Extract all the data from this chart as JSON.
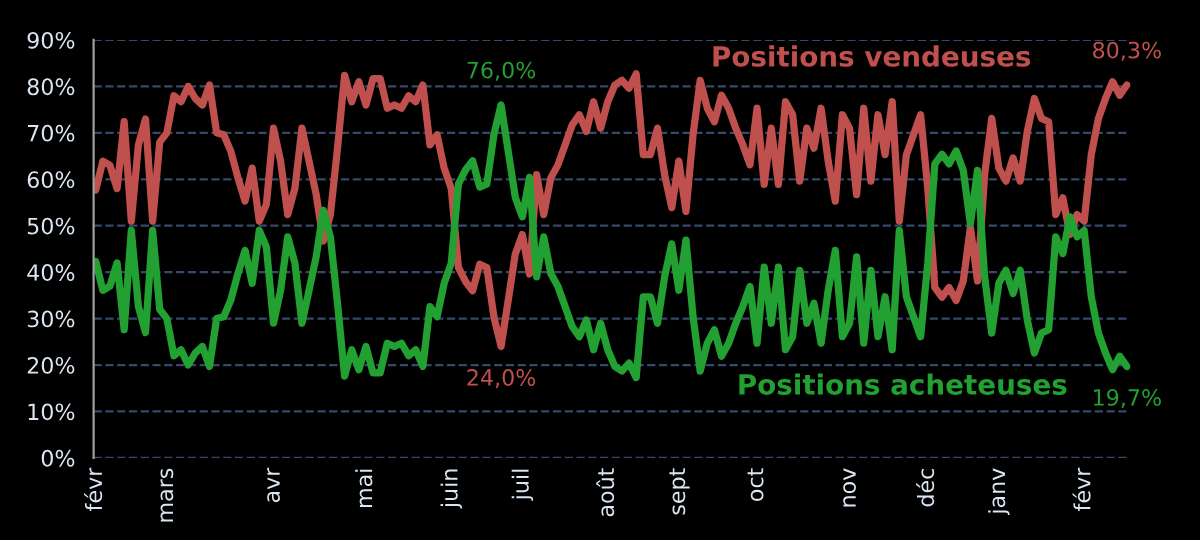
{
  "chart_data": {
    "type": "line",
    "categories": [
      "févr",
      null,
      null,
      null,
      null,
      null,
      null,
      null,
      null,
      null,
      "mars",
      null,
      null,
      null,
      null,
      null,
      null,
      null,
      null,
      null,
      null,
      null,
      null,
      null,
      null,
      "avr",
      null,
      null,
      null,
      null,
      null,
      null,
      null,
      null,
      null,
      null,
      null,
      null,
      "mai",
      null,
      null,
      null,
      null,
      null,
      null,
      null,
      null,
      null,
      null,
      null,
      "juin",
      null,
      null,
      null,
      null,
      null,
      null,
      null,
      null,
      null,
      "juil",
      null,
      null,
      null,
      null,
      null,
      null,
      null,
      null,
      null,
      null,
      null,
      "août",
      null,
      null,
      null,
      null,
      null,
      null,
      null,
      null,
      null,
      "sept",
      null,
      null,
      null,
      null,
      null,
      null,
      null,
      null,
      null,
      null,
      "oct",
      null,
      null,
      null,
      null,
      null,
      null,
      null,
      null,
      null,
      null,
      null,
      null,
      "nov",
      null,
      null,
      null,
      null,
      null,
      null,
      null,
      null,
      null,
      null,
      "déc",
      null,
      null,
      null,
      null,
      null,
      null,
      null,
      null,
      null,
      "janv",
      null,
      null,
      null,
      null,
      null,
      null,
      null,
      null,
      null,
      null,
      null,
      "févr",
      null,
      null,
      null,
      null,
      null,
      null
    ],
    "series": [
      {
        "name": "Positions vendeuses",
        "color": "#c0504d",
        "values": [
          57.7,
          63.9,
          63,
          58,
          72.4,
          51,
          67.4,
          73,
          51,
          68,
          70,
          78,
          76.7,
          80,
          77.4,
          76,
          80.3,
          70,
          69.6,
          66,
          60.3,
          55.3,
          62.4,
          51,
          54.6,
          71,
          63.9,
          52.4,
          58,
          71,
          63.9,
          56.7,
          46.7,
          52.4,
          66.7,
          82.4,
          76.7,
          81,
          76,
          81.7,
          81.7,
          75.3,
          76,
          75.3,
          78,
          76.7,
          80.3,
          67.4,
          69.6,
          62.4,
          58,
          41,
          38,
          36,
          41.7,
          41,
          30.3,
          24.0,
          33.9,
          43.9,
          48.1,
          39.6,
          61,
          52.4,
          60.3,
          63.1,
          67.4,
          71.7,
          73.9,
          70.3,
          76.7,
          71,
          76.7,
          80.3,
          81.3,
          79.6,
          82.7,
          65.3,
          65.3,
          71,
          61,
          53.9,
          63.9,
          53.1,
          69.6,
          81.3,
          75.3,
          72.4,
          78.1,
          75.3,
          71,
          67.4,
          63.1,
          75.3,
          58.9,
          71,
          58.9,
          76.7,
          73.9,
          59.6,
          71,
          66.7,
          75.3,
          63.9,
          55.3,
          73.9,
          71,
          56.7,
          75.3,
          59.6,
          73.9,
          65.3,
          76.7,
          51,
          65.3,
          69.6,
          73.9,
          58.1,
          36.7,
          34.6,
          36.7,
          33.9,
          38.1,
          49.6,
          38.1,
          61,
          73.1,
          62.4,
          59.6,
          64.6,
          59.6,
          70.3,
          77.4,
          73.1,
          72.4,
          52.4,
          56,
          48.1,
          52.4,
          51,
          65.3,
          73.1,
          77.4,
          81,
          78.1,
          80.3
        ]
      },
      {
        "name": "Positions acheteuses",
        "color": "#22a032",
        "values": [
          42.3,
          36.1,
          37,
          42,
          27.6,
          49,
          32.6,
          27,
          49,
          32,
          30,
          22,
          23.3,
          20,
          22.6,
          24,
          19.7,
          30,
          30.4,
          34,
          39.7,
          44.7,
          37.6,
          49,
          45.4,
          29,
          36.1,
          47.6,
          42,
          29,
          36.1,
          43.3,
          53.3,
          47.6,
          33.3,
          17.6,
          23.3,
          19,
          24,
          18.3,
          18.3,
          24.7,
          24,
          24.7,
          22,
          23.3,
          19.7,
          32.6,
          30.4,
          37.6,
          42,
          59,
          62,
          64,
          58.3,
          59,
          69.7,
          76.0,
          66.1,
          56.1,
          51.9,
          60.4,
          39,
          47.6,
          39.7,
          36.9,
          32.6,
          28.3,
          26.1,
          29.7,
          23.3,
          29,
          23.3,
          19.7,
          18.7,
          20.4,
          17.3,
          34.7,
          34.7,
          29,
          39,
          46.1,
          36.1,
          46.9,
          30.4,
          18.7,
          24.7,
          27.6,
          21.9,
          24.7,
          29,
          32.6,
          36.9,
          24.7,
          41.1,
          29,
          41.1,
          23.3,
          26.1,
          40.4,
          29,
          33.3,
          24.7,
          36.1,
          44.7,
          26.1,
          29,
          43.3,
          24.7,
          40.4,
          26.1,
          34.7,
          23.3,
          49,
          34.7,
          30.4,
          26.1,
          41.9,
          63.3,
          65.4,
          63.3,
          66.1,
          61.9,
          50.4,
          61.9,
          39,
          26.9,
          37.6,
          40.4,
          35.4,
          40.4,
          29.7,
          22.6,
          26.9,
          27.6,
          47.6,
          44,
          51.9,
          47.6,
          49,
          34.7,
          26.9,
          22.6,
          19,
          21.9,
          19.7
        ]
      }
    ],
    "ylim": [
      0,
      90
    ],
    "yticks": [
      {
        "value": 0,
        "label": "0%"
      },
      {
        "value": 10,
        "label": "10%"
      },
      {
        "value": 20,
        "label": "20%"
      },
      {
        "value": 30,
        "label": "30%"
      },
      {
        "value": 40,
        "label": "40%"
      },
      {
        "value": 50,
        "label": "50%"
      },
      {
        "value": 60,
        "label": "60%"
      },
      {
        "value": 70,
        "label": "70%"
      },
      {
        "value": 80,
        "label": "80%"
      },
      {
        "value": 90,
        "label": "90%"
      }
    ],
    "annotations": [
      {
        "text": "76,0%",
        "y": 76.0
      },
      {
        "text": "24,0%",
        "y": 24.0
      },
      {
        "text": "80,3%",
        "y": 80.3
      },
      {
        "text": "19,7%",
        "y": 19.7
      }
    ],
    "grid": "y",
    "legend": false,
    "line_style": "solid",
    "marker": "none"
  }
}
